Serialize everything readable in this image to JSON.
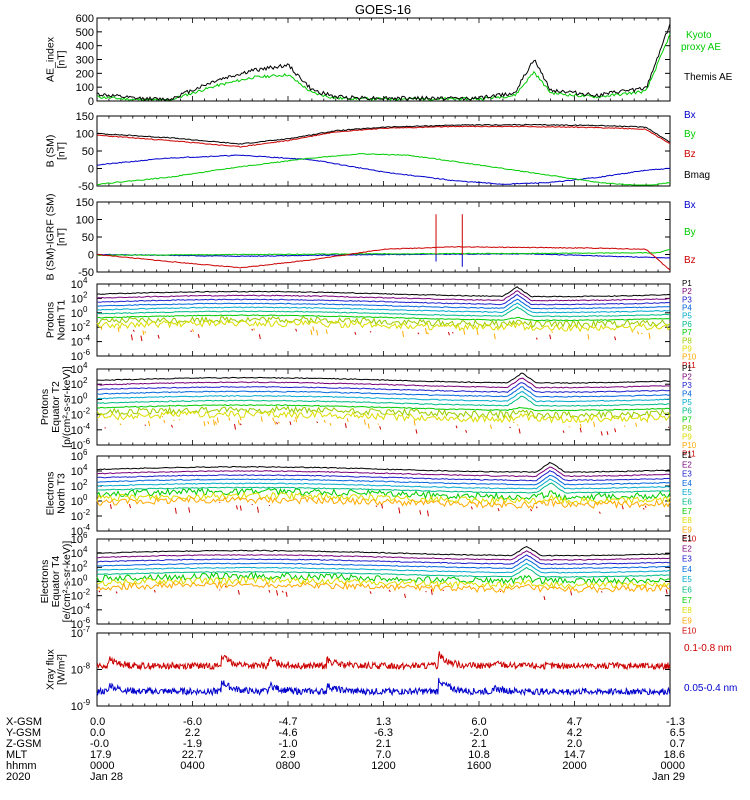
{
  "title": "GOES-16",
  "chart_data": [
    {
      "type": "line",
      "id": "ae",
      "ylabel": [
        "AE_index",
        "[nT]"
      ],
      "ylim": [
        0,
        600
      ],
      "yticks": [
        "600",
        "500",
        "400",
        "300",
        "200",
        "100",
        "0"
      ],
      "ytickvals": [
        600,
        500,
        400,
        300,
        200,
        100,
        0
      ],
      "legend": [
        {
          "text": "Kyoto",
          "color": "#00cc00"
        },
        {
          "text": "proxy AE",
          "color": "#00cc00"
        },
        {
          "text": "Themis AE",
          "color": "#000000"
        }
      ],
      "series": [
        {
          "name": "Themis AE",
          "color": "#000000",
          "points": [
            [
              0,
              50
            ],
            [
              1.5,
              20
            ],
            [
              3,
              10
            ],
            [
              5,
              150
            ],
            [
              6.5,
              220
            ],
            [
              8,
              260
            ],
            [
              9,
              80
            ],
            [
              10,
              30
            ],
            [
              12,
              20
            ],
            [
              14,
              20
            ],
            [
              16,
              20
            ],
            [
              17.5,
              60
            ],
            [
              18.3,
              300
            ],
            [
              19,
              80
            ],
            [
              20,
              60
            ],
            [
              21,
              40
            ],
            [
              22,
              70
            ],
            [
              23,
              90
            ],
            [
              24,
              560
            ]
          ]
        },
        {
          "name": "Kyoto proxy AE",
          "color": "#00cc00",
          "points": [
            [
              0,
              30
            ],
            [
              1.5,
              10
            ],
            [
              3,
              5
            ],
            [
              5,
              110
            ],
            [
              6.5,
              170
            ],
            [
              8,
              190
            ],
            [
              9,
              60
            ],
            [
              10,
              20
            ],
            [
              12,
              15
            ],
            [
              14,
              15
            ],
            [
              16,
              15
            ],
            [
              17.5,
              40
            ],
            [
              18.3,
              210
            ],
            [
              19,
              60
            ],
            [
              20,
              40
            ],
            [
              21,
              30
            ],
            [
              22,
              50
            ],
            [
              23,
              70
            ],
            [
              24,
              480
            ]
          ]
        }
      ]
    },
    {
      "type": "line",
      "id": "bsm",
      "ylabel": [
        "B (SM)",
        "[nT]"
      ],
      "ylim": [
        -50,
        150
      ],
      "yticks": [
        "150",
        "100",
        "50",
        "0",
        "-50"
      ],
      "ytickvals": [
        150,
        100,
        50,
        0,
        -50
      ],
      "legend": [
        {
          "text": "Bx",
          "color": "#0000cc"
        },
        {
          "text": "By",
          "color": "#00cc00"
        },
        {
          "text": "Bz",
          "color": "#cc0000"
        },
        {
          "text": "Bmag",
          "color": "#000000"
        }
      ],
      "series": [
        {
          "name": "Bx",
          "color": "#0000cc",
          "points": [
            [
              0,
              10
            ],
            [
              3,
              30
            ],
            [
              6,
              38
            ],
            [
              9,
              25
            ],
            [
              12,
              -10
            ],
            [
              15,
              -35
            ],
            [
              17,
              -45
            ],
            [
              19,
              -40
            ],
            [
              21,
              -25
            ],
            [
              23,
              -5
            ],
            [
              24,
              0
            ]
          ]
        },
        {
          "name": "By",
          "color": "#00cc00",
          "points": [
            [
              0,
              -45
            ],
            [
              3,
              -25
            ],
            [
              6,
              5
            ],
            [
              9,
              30
            ],
            [
              11,
              42
            ],
            [
              13,
              38
            ],
            [
              15,
              20
            ],
            [
              17,
              0
            ],
            [
              19,
              -20
            ],
            [
              21,
              -40
            ],
            [
              23,
              -50
            ],
            [
              24,
              -40
            ]
          ]
        },
        {
          "name": "Bz",
          "color": "#cc0000",
          "points": [
            [
              0,
              95
            ],
            [
              3,
              80
            ],
            [
              6,
              62
            ],
            [
              8,
              80
            ],
            [
              10,
              105
            ],
            [
              12,
              115
            ],
            [
              15,
              120
            ],
            [
              18,
              120
            ],
            [
              21,
              117
            ],
            [
              23,
              112
            ],
            [
              24,
              70
            ]
          ]
        },
        {
          "name": "Bmag",
          "color": "#000000",
          "points": [
            [
              0,
              100
            ],
            [
              3,
              88
            ],
            [
              6,
              70
            ],
            [
              8,
              85
            ],
            [
              10,
              108
            ],
            [
              12,
              118
            ],
            [
              15,
              124
            ],
            [
              18,
              125
            ],
            [
              21,
              123
            ],
            [
              23,
              118
            ],
            [
              24,
              75
            ]
          ]
        }
      ]
    },
    {
      "type": "line",
      "id": "bigrf",
      "ylabel": [
        "B (SM)-IGRF (SM)",
        "[nT]"
      ],
      "ylim": [
        -50,
        150
      ],
      "yticks": [
        "150",
        "100",
        "50",
        "0",
        "-50"
      ],
      "ytickvals": [
        150,
        100,
        50,
        0,
        -50
      ],
      "legend": [
        {
          "text": "Bx",
          "color": "#0000cc"
        },
        {
          "text": "By",
          "color": "#00cc00"
        },
        {
          "text": "Bz",
          "color": "#cc0000"
        }
      ],
      "series": [
        {
          "name": "Bx",
          "color": "#0000cc",
          "points": [
            [
              0,
              0
            ],
            [
              6,
              -5
            ],
            [
              12,
              0
            ],
            [
              18,
              2
            ],
            [
              24,
              -10
            ]
          ]
        },
        {
          "name": "By",
          "color": "#00cc00",
          "points": [
            [
              0,
              -2
            ],
            [
              6,
              0
            ],
            [
              12,
              2
            ],
            [
              18,
              3
            ],
            [
              23.5,
              5
            ],
            [
              24,
              15
            ]
          ]
        },
        {
          "name": "Bz",
          "color": "#cc0000",
          "points": [
            [
              0,
              0
            ],
            [
              3,
              -20
            ],
            [
              6,
              -38
            ],
            [
              9,
              -15
            ],
            [
              12,
              15
            ],
            [
              15,
              22
            ],
            [
              18,
              20
            ],
            [
              21,
              18
            ],
            [
              23,
              15
            ],
            [
              24,
              -45
            ]
          ]
        }
      ],
      "spikes": [
        [
          14.2,
          115,
          -20
        ],
        [
          15.3,
          115,
          -35
        ]
      ]
    },
    {
      "type": "line",
      "id": "pn",
      "ylabel": [
        "Protons",
        "North T1"
      ],
      "logexp": [
        4,
        -6
      ],
      "yticks": [
        "10",
        "10",
        "10",
        "10",
        "10",
        "10"
      ],
      "ytickexp": [
        "4",
        "2",
        "0",
        "-2",
        "-4",
        "-6"
      ],
      "legend": [
        "P1",
        "P2",
        "P3",
        "P4",
        "P5",
        "P6",
        "P7",
        "P8",
        "P9",
        "P10",
        "P11"
      ]
    },
    {
      "type": "line",
      "id": "pe",
      "ylabel": [
        "Protons",
        "Equator T2",
        "[p/(cm²-s-sr-keV)]"
      ],
      "logexp": [
        4,
        -6
      ],
      "yticks": [
        "10",
        "10",
        "10",
        "10",
        "10",
        "10"
      ],
      "ytickexp": [
        "4",
        "2",
        "0",
        "-2",
        "-4",
        "-6"
      ],
      "legend": [
        "P1",
        "P2",
        "P3",
        "P4",
        "P5",
        "P6",
        "P7",
        "P8",
        "P9",
        "P10",
        "P11"
      ]
    },
    {
      "type": "line",
      "id": "en",
      "ylabel": [
        "Electrons",
        "North T3"
      ],
      "logexp": [
        6,
        -4
      ],
      "yticks": [
        "10",
        "10",
        "10",
        "10",
        "10",
        "10"
      ],
      "ytickexp": [
        "6",
        "4",
        "2",
        "0",
        "-2",
        "-4"
      ],
      "legend": [
        "E1",
        "E2",
        "E3",
        "E4",
        "E5",
        "E6",
        "E7",
        "E8",
        "E9",
        "E10"
      ]
    },
    {
      "type": "line",
      "id": "ee",
      "ylabel": [
        "Electrons",
        "Equator T4",
        "[e/(cm²-s-sr-keV)]"
      ],
      "logexp": [
        6,
        -6
      ],
      "yticks": [
        "10",
        "10",
        "10",
        "10",
        "10",
        "10",
        "10"
      ],
      "ytickexp": [
        "6",
        "4",
        "2",
        "0",
        "-2",
        "-4",
        "-6"
      ],
      "legend": [
        "E1",
        "E2",
        "E3",
        "E4",
        "E5",
        "E6",
        "E7",
        "E8",
        "E9",
        "E10"
      ]
    },
    {
      "type": "line",
      "id": "xray",
      "ylabel": [
        "Xray flux",
        "[W/m²]"
      ],
      "logexp": [
        -7,
        -9
      ],
      "yticks": [
        "10",
        "10",
        "10"
      ],
      "ytickexp": [
        "-7",
        "-8",
        "-9"
      ],
      "legend": [
        {
          "text": "0.1-0.8 nm",
          "color": "#cc0000"
        },
        {
          "text": "0.05-0.4 nm",
          "color": "#0000cc"
        }
      ]
    }
  ],
  "xaxis": {
    "range_hours": [
      0,
      24
    ],
    "rows": [
      {
        "label": "X-GSM",
        "values": [
          "0.0",
          "-6.0",
          "-4.7",
          "1.3",
          "6.0",
          "4.7",
          "-1.3"
        ]
      },
      {
        "label": "Y-GSM",
        "values": [
          "0.0",
          "2.2",
          "-4.6",
          "-6.3",
          "-2.0",
          "4.2",
          "6.5"
        ]
      },
      {
        "label": "Z-GSM",
        "values": [
          "-0.0",
          "-1.9",
          "-1.0",
          "2.1",
          "2.1",
          "2.0",
          "0.7"
        ]
      },
      {
        "label": "MLT",
        "values": [
          "17.9",
          "22.7",
          "2.9",
          "7.0",
          "10.8",
          "14.7",
          "18.6"
        ]
      },
      {
        "label": "hhmm",
        "values": [
          "0000",
          "0400",
          "0800",
          "1200",
          "1600",
          "2000",
          "0000"
        ]
      },
      {
        "label": "2020",
        "values": [
          "Jan 28",
          "",
          "",
          "",
          "",
          "",
          "Jan 29"
        ]
      }
    ]
  }
}
